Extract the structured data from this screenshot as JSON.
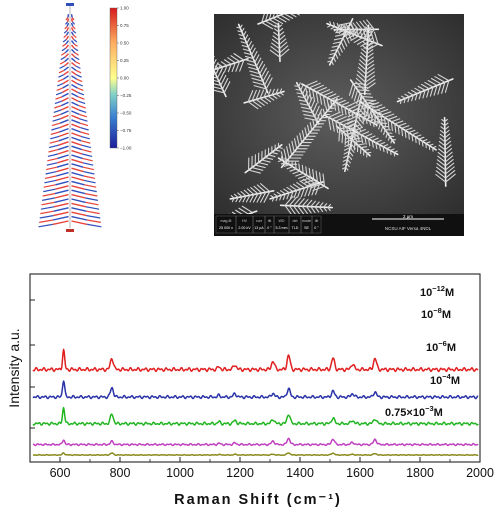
{
  "colorbar": {
    "ticks": [
      "1.00",
      "0.75",
      "0.50",
      "0.25",
      "0.00",
      "−0.25",
      "−0.50",
      "−0.75",
      "−1.00"
    ]
  },
  "sem": {
    "info_headers": [
      "mag ⊞",
      "HV",
      "curr",
      "tilt",
      "WD",
      "det",
      "mode",
      "tilt"
    ],
    "info_values": [
      "25 000 x",
      "2.00 kV",
      "13 pA",
      "0 °",
      "5.3 mm",
      "TLD",
      "SE",
      "0 °"
    ],
    "scale_label": "2 μm",
    "instrument": "NCSU AIF Versa 4NDL"
  },
  "chart_data": {
    "type": "line",
    "xlabel": "Raman Shift (cm⁻¹)",
    "ylabel": "Intensity a.u.",
    "xlim": [
      500,
      2000
    ],
    "xticks": [
      600,
      800,
      1000,
      1200,
      1400,
      1600,
      1800,
      2000
    ],
    "legend_position": "right",
    "grid": false,
    "peaks": [
      612,
      773,
      1130,
      1183,
      1310,
      1362,
      1510,
      1575,
      1650
    ],
    "series": [
      {
        "name": "10⁻¹² M",
        "label_base": "10",
        "label_exp": "−12",
        "label_unit": "M",
        "color": "#8b8a1e",
        "baseline": 0.0,
        "scale": 0.13,
        "noise": 0.02,
        "amps": [
          0.9,
          0.8,
          0.2,
          0.25,
          0.3,
          0.9,
          0.8,
          0.3,
          0.6
        ]
      },
      {
        "name": "10⁻⁸ M",
        "label_base": "10",
        "label_exp": "−8",
        "label_unit": "M",
        "color": "#c040c0",
        "baseline": 0.55,
        "scale": 0.33,
        "noise": 0.05,
        "amps": [
          0.8,
          0.5,
          0.2,
          0.25,
          0.55,
          1.0,
          0.9,
          0.35,
          0.85
        ]
      },
      {
        "name": "10⁻⁶ M",
        "label_base": "10",
        "label_exp": "−6",
        "label_unit": "M",
        "color": "#22b522",
        "baseline": 1.65,
        "scale": 0.85,
        "noise": 0.08,
        "amps": [
          1.0,
          0.6,
          0.12,
          0.2,
          0.28,
          0.6,
          0.35,
          0.2,
          0.3
        ]
      },
      {
        "name": "10⁻⁴ M",
        "label_base": "10",
        "label_exp": "−4",
        "label_unit": "M",
        "color": "#2a33a8",
        "baseline": 3.05,
        "scale": 0.9,
        "noise": 0.08,
        "amps": [
          1.0,
          0.55,
          0.1,
          0.2,
          0.22,
          0.5,
          0.35,
          0.2,
          0.3
        ]
      },
      {
        "name": "0.75×10⁻³ M",
        "label_base": "0.75×10",
        "label_exp": "−3",
        "label_unit": "M",
        "color": "#e02020",
        "baseline": 4.5,
        "scale": 1.0,
        "noise": 0.1,
        "amps": [
          1.0,
          0.6,
          0.15,
          0.25,
          0.45,
          0.75,
          0.6,
          0.3,
          0.6
        ]
      }
    ]
  }
}
